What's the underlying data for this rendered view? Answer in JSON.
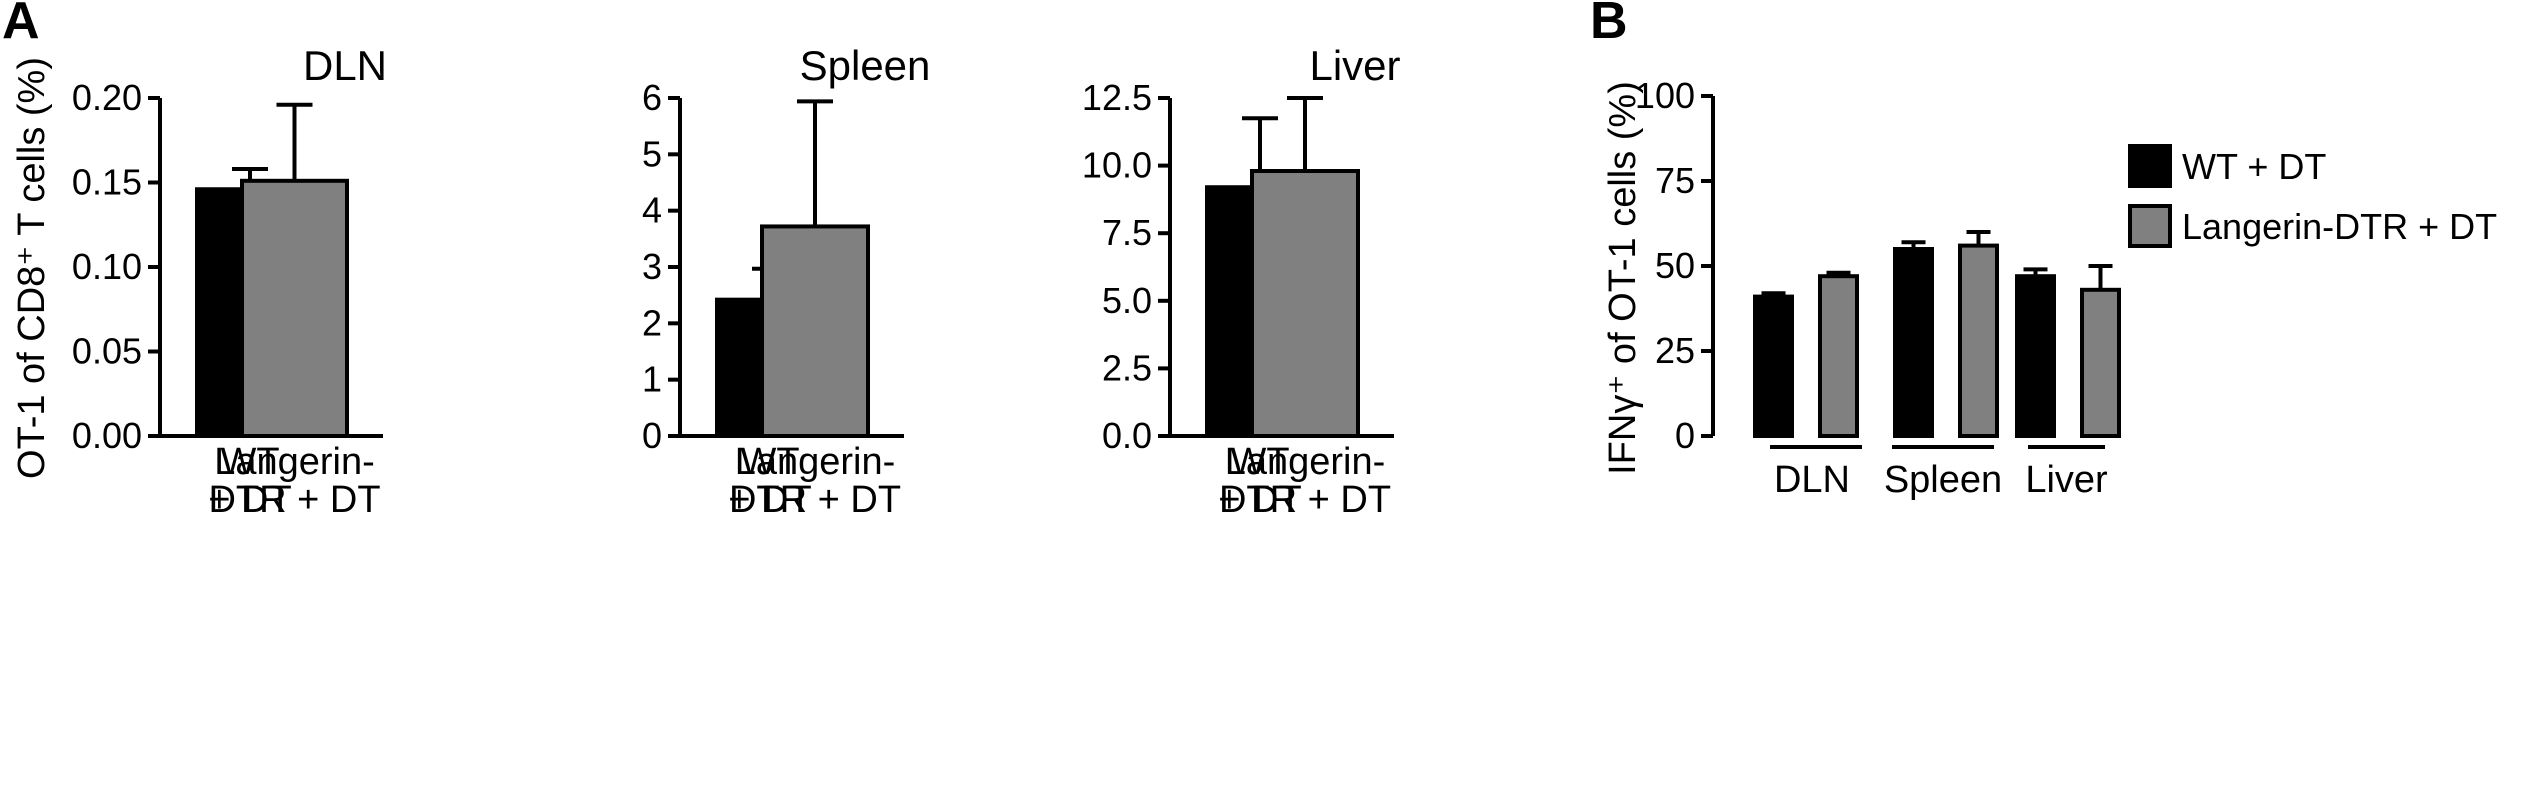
{
  "panel_labels": {
    "a": "A",
    "b": "B"
  },
  "colors": {
    "wt": "#000000",
    "langerin": "#808080",
    "axis": "#000000"
  },
  "chart_data": [
    {
      "type": "bar",
      "panel": "A",
      "title": "DLN",
      "ylabel": "OT-1 of CD8⁺ T cells (%)",
      "categories": [
        [
          "WT",
          "+ DT"
        ],
        [
          "Langerin-",
          "DTR + DT"
        ]
      ],
      "values": [
        0.146,
        0.151
      ],
      "errors": [
        0.012,
        0.045
      ],
      "ylim": [
        0,
        0.2
      ],
      "yticks": [
        "0.00",
        "0.05",
        "0.10",
        "0.15",
        "0.20"
      ]
    },
    {
      "type": "bar",
      "panel": "A",
      "title": "Spleen",
      "categories": [
        [
          "WT",
          "+ DT"
        ],
        [
          "Langerin-",
          "DTR + DT"
        ]
      ],
      "values": [
        2.42,
        3.72
      ],
      "errors": [
        0.55,
        2.22
      ],
      "ylim": [
        0,
        6
      ],
      "yticks": [
        "0",
        "1",
        "2",
        "3",
        "4",
        "5",
        "6"
      ]
    },
    {
      "type": "bar",
      "panel": "A",
      "title": "Liver",
      "categories": [
        [
          "WT",
          "+ DT"
        ],
        [
          "Langerin-",
          "DTR + DT"
        ]
      ],
      "values": [
        9.2,
        9.8
      ],
      "errors": [
        2.55,
        2.7
      ],
      "ylim": [
        0,
        12.5
      ],
      "yticks": [
        "0.0",
        "2.5",
        "5.0",
        "7.5",
        "10.0",
        "12.5"
      ]
    },
    {
      "type": "bar",
      "panel": "B",
      "ylabel": "IFNγ⁺ of OT-1 cells (%)",
      "categories": [
        "DLN",
        "Spleen",
        "Liver"
      ],
      "series": [
        {
          "name": "WT + DT",
          "values": [
            41,
            55,
            47
          ],
          "errors": [
            1,
            2,
            2
          ]
        },
        {
          "name": "Langerin-DTR + DT",
          "values": [
            47,
            56,
            43
          ],
          "errors": [
            1,
            4,
            7
          ]
        }
      ],
      "ylim": [
        0,
        100
      ],
      "yticks": [
        "0",
        "25",
        "50",
        "75",
        "100"
      ],
      "legend": "top-right"
    }
  ]
}
